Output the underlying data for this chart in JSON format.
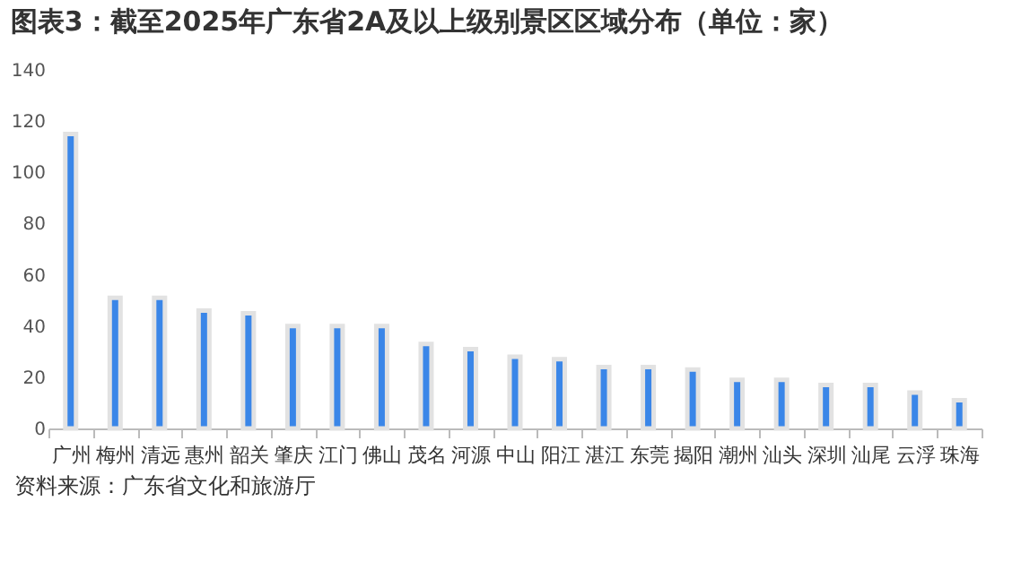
{
  "chart_data": {
    "type": "bar",
    "title": "图表3：截至2025年广东省2A及以上级别景区区域分布（单位：家）",
    "categories": [
      "广州",
      "梅州",
      "清远",
      "惠州",
      "韶关",
      "肇庆",
      "江门",
      "佛山",
      "茂名",
      "河源",
      "中山",
      "阳江",
      "湛江",
      "东莞",
      "揭阳",
      "潮州",
      "汕头",
      "深圳",
      "汕尾",
      "云浮",
      "珠海"
    ],
    "values": [
      115,
      51,
      51,
      46,
      45,
      40,
      40,
      40,
      33,
      31,
      28,
      27,
      24,
      24,
      23,
      19,
      19,
      17,
      17,
      14,
      11
    ],
    "color": "#3a86e8",
    "ylim": [
      0,
      140
    ],
    "yticks": [
      0,
      20,
      40,
      60,
      80,
      100,
      120,
      140
    ],
    "grid": false,
    "annotations": [
      "资料来源：广东省文化和旅游厅"
    ]
  }
}
